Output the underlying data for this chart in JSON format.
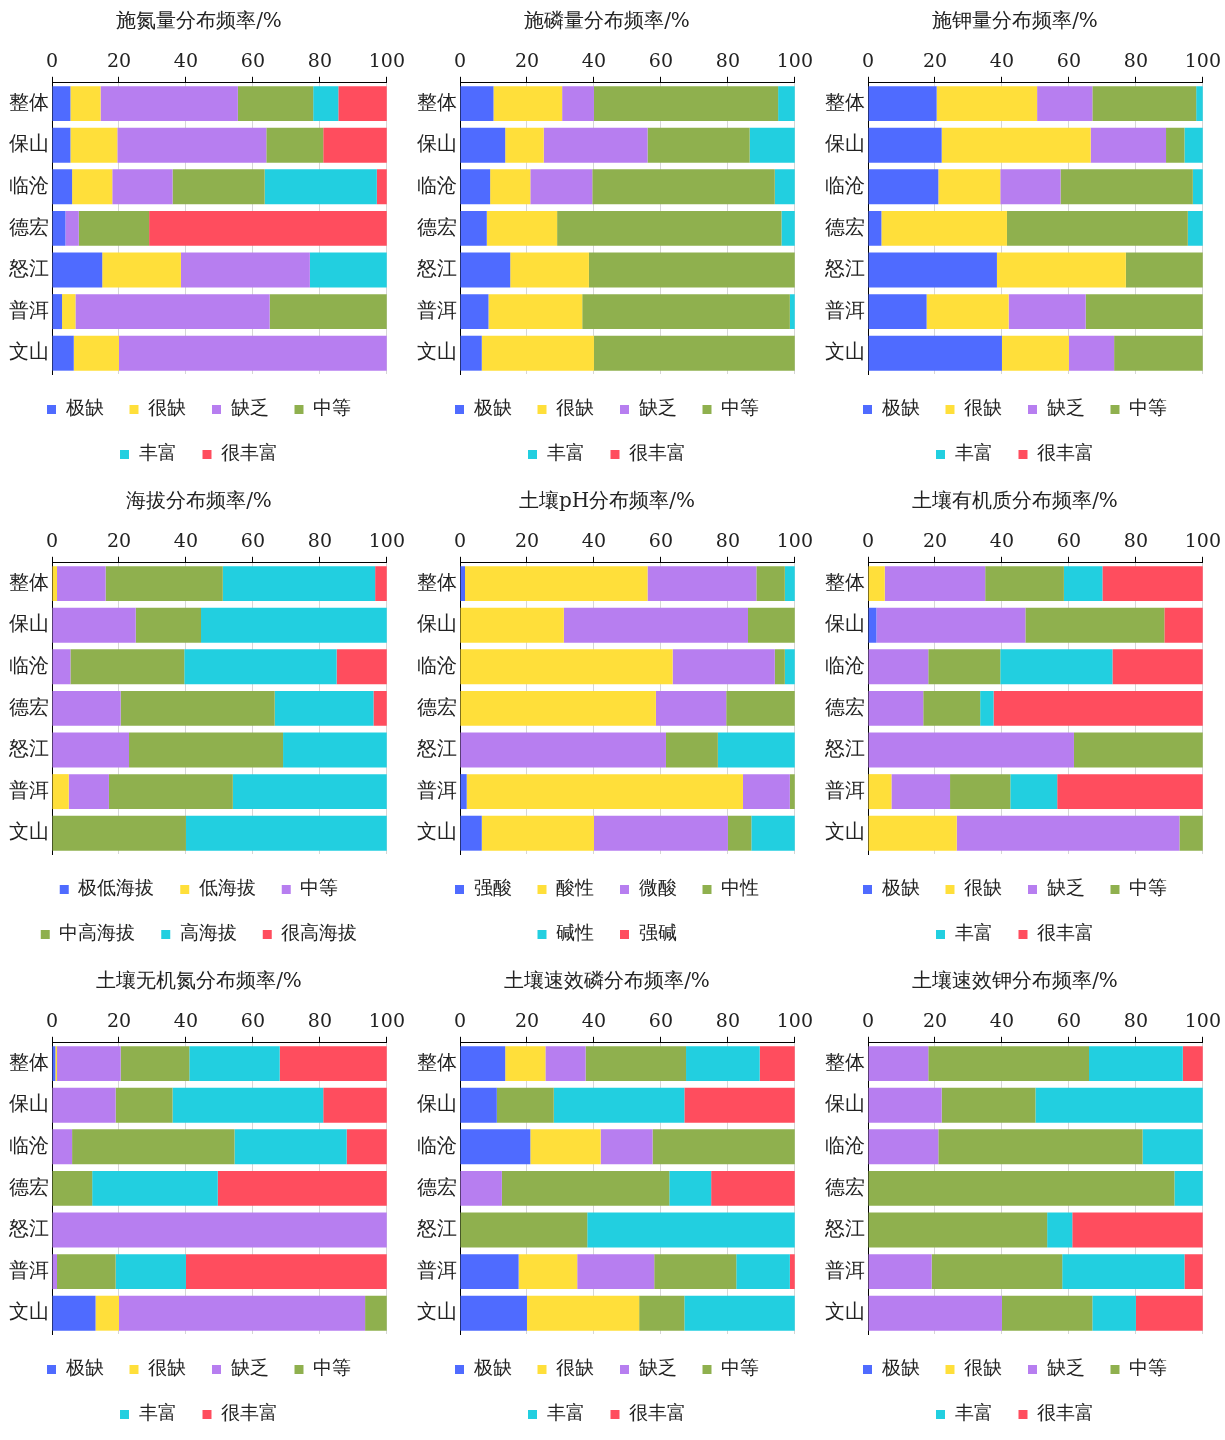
{
  "chart_data": [
    {
      "type": "bar",
      "orientation": "horizontal",
      "stacked": true,
      "title": "施氮量分布频率/%",
      "categories": [
        "整体",
        "保山",
        "临沧",
        "德宏",
        "怒江",
        "普洱",
        "文山"
      ],
      "xlim": [
        0,
        100
      ],
      "xticks": [
        0,
        20,
        40,
        60,
        80,
        100
      ],
      "grid": "x",
      "legend": "bottom",
      "series": [
        {
          "name": "极缺",
          "color": "#4f6bff",
          "values": [
            5.5,
            5.5,
            6,
            4,
            15,
            3,
            6.5
          ]
        },
        {
          "name": "很缺",
          "color": "#ffdf3a",
          "values": [
            9,
            14,
            12,
            0,
            23.5,
            4,
            13.5
          ]
        },
        {
          "name": "缺乏",
          "color": "#b77ef0",
          "values": [
            41,
            44.5,
            18,
            4,
            38.5,
            58,
            80
          ]
        },
        {
          "name": "中等",
          "color": "#8fb04e",
          "values": [
            22.5,
            17,
            27.5,
            21,
            0,
            35,
            0
          ]
        },
        {
          "name": "丰富",
          "color": "#22cfe0",
          "values": [
            7.5,
            0,
            33.5,
            0,
            23,
            0,
            0
          ]
        },
        {
          "name": "很丰富",
          "color": "#ff4d5e",
          "values": [
            14.5,
            19,
            3,
            71,
            0,
            0,
            0
          ]
        }
      ]
    },
    {
      "type": "bar",
      "orientation": "horizontal",
      "stacked": true,
      "title": "施磷量分布频率/%",
      "categories": [
        "整体",
        "保山",
        "临沧",
        "德宏",
        "怒江",
        "普洱",
        "文山"
      ],
      "xlim": [
        0,
        100
      ],
      "xticks": [
        0,
        20,
        40,
        60,
        80,
        100
      ],
      "grid": "x",
      "legend": "bottom",
      "series": [
        {
          "name": "极缺",
          "color": "#4f6bff",
          "values": [
            10,
            13.5,
            9,
            8,
            15,
            8.5,
            6.5
          ]
        },
        {
          "name": "很缺",
          "color": "#ffdf3a",
          "values": [
            20.5,
            11.5,
            12,
            21,
            23.5,
            28,
            33.5
          ]
        },
        {
          "name": "缺乏",
          "color": "#b77ef0",
          "values": [
            9.5,
            31,
            18.5,
            0,
            0,
            0,
            0
          ]
        },
        {
          "name": "中等",
          "color": "#8fb04e",
          "values": [
            55,
            30.5,
            54.5,
            67,
            61.5,
            62,
            60
          ]
        },
        {
          "name": "丰富",
          "color": "#22cfe0",
          "values": [
            5,
            13.5,
            6,
            4,
            0,
            1.5,
            0
          ]
        },
        {
          "name": "很丰富",
          "color": "#ff4d5e",
          "values": [
            0,
            0,
            0,
            0,
            0,
            0,
            0
          ]
        }
      ]
    },
    {
      "type": "bar",
      "orientation": "horizontal",
      "stacked": true,
      "title": "施钾量分布频率/%",
      "categories": [
        "整体",
        "保山",
        "临沧",
        "德宏",
        "怒江",
        "普洱",
        "文山"
      ],
      "xlim": [
        0,
        100
      ],
      "xticks": [
        0,
        20,
        40,
        60,
        80,
        100
      ],
      "grid": "x",
      "legend": "bottom",
      "series": [
        {
          "name": "极缺",
          "color": "#4f6bff",
          "values": [
            20.5,
            22,
            21,
            4,
            38.5,
            17.5,
            40
          ]
        },
        {
          "name": "很缺",
          "color": "#ffdf3a",
          "values": [
            30,
            44.5,
            18.5,
            37.5,
            38.5,
            24.5,
            20
          ]
        },
        {
          "name": "缺乏",
          "color": "#b77ef0",
          "values": [
            16.5,
            22.5,
            18,
            0,
            0,
            23,
            13.5
          ]
        },
        {
          "name": "中等",
          "color": "#8fb04e",
          "values": [
            31,
            5.5,
            39.5,
            54,
            23,
            35,
            26.5
          ]
        },
        {
          "name": "丰富",
          "color": "#22cfe0",
          "values": [
            2,
            5.5,
            3,
            4.5,
            0,
            0,
            0
          ]
        },
        {
          "name": "很丰富",
          "color": "#ff4d5e",
          "values": [
            0,
            0,
            0,
            0,
            0,
            0,
            0
          ]
        }
      ]
    },
    {
      "type": "bar",
      "orientation": "horizontal",
      "stacked": true,
      "title": "海拔分布频率/%",
      "categories": [
        "整体",
        "保山",
        "临沧",
        "德宏",
        "怒江",
        "普洱",
        "文山"
      ],
      "xlim": [
        0,
        100
      ],
      "xticks": [
        0,
        20,
        40,
        60,
        80,
        100
      ],
      "grid": "x",
      "legend": "bottom",
      "series": [
        {
          "name": "极低海拔",
          "color": "#4f6bff",
          "values": [
            0,
            0,
            0,
            0,
            0,
            0,
            0
          ]
        },
        {
          "name": "低海拔",
          "color": "#ffdf3a",
          "values": [
            1.5,
            0,
            0,
            0,
            0,
            5,
            0
          ]
        },
        {
          "name": "中等",
          "color": "#b77ef0",
          "values": [
            14.5,
            25,
            5.5,
            20.5,
            23,
            12,
            0
          ]
        },
        {
          "name": "中高海拔",
          "color": "#8fb04e",
          "values": [
            35,
            19.5,
            34,
            46,
            46,
            37,
            40
          ]
        },
        {
          "name": "高海拔",
          "color": "#22cfe0",
          "values": [
            45.5,
            55.5,
            45.5,
            29.5,
            31,
            46,
            60
          ]
        },
        {
          "name": "很高海拔",
          "color": "#ff4d5e",
          "values": [
            3.5,
            0,
            15,
            4,
            0,
            0,
            0
          ]
        }
      ]
    },
    {
      "type": "bar",
      "orientation": "horizontal",
      "stacked": true,
      "title": "土壤pH分布频率/%",
      "categories": [
        "整体",
        "保山",
        "临沧",
        "德宏",
        "怒江",
        "普洱",
        "文山"
      ],
      "xlim": [
        0,
        100
      ],
      "xticks": [
        0,
        20,
        40,
        60,
        80,
        100
      ],
      "grid": "x",
      "legend": "bottom",
      "series": [
        {
          "name": "强酸",
          "color": "#4f6bff",
          "values": [
            1.5,
            0,
            0,
            0,
            0,
            2,
            6.5
          ]
        },
        {
          "name": "酸性",
          "color": "#ffdf3a",
          "values": [
            54.5,
            31,
            63.5,
            58.5,
            0,
            82.5,
            33.5
          ]
        },
        {
          "name": "微酸",
          "color": "#b77ef0",
          "values": [
            32.5,
            55,
            30.5,
            21,
            61.5,
            14,
            40
          ]
        },
        {
          "name": "中性",
          "color": "#8fb04e",
          "values": [
            8.5,
            14,
            3,
            20.5,
            15.5,
            1.5,
            7
          ]
        },
        {
          "name": "碱性",
          "color": "#22cfe0",
          "values": [
            3,
            0,
            3,
            0,
            23,
            0,
            13
          ]
        },
        {
          "name": "强碱",
          "color": "#ff4d5e",
          "values": [
            0,
            0,
            0,
            0,
            0,
            0,
            0
          ]
        }
      ]
    },
    {
      "type": "bar",
      "orientation": "horizontal",
      "stacked": true,
      "title": "土壤有机质分布频率/%",
      "categories": [
        "整体",
        "保山",
        "临沧",
        "德宏",
        "怒江",
        "普洱",
        "文山"
      ],
      "xlim": [
        0,
        100
      ],
      "xticks": [
        0,
        20,
        40,
        60,
        80,
        100
      ],
      "grid": "x",
      "legend": "bottom",
      "series": [
        {
          "name": "极缺",
          "color": "#4f6bff",
          "values": [
            0,
            2.5,
            0,
            0,
            0,
            0,
            0
          ]
        },
        {
          "name": "很缺",
          "color": "#ffdf3a",
          "values": [
            5,
            0,
            0,
            0,
            0,
            7,
            26.5
          ]
        },
        {
          "name": "缺乏",
          "color": "#b77ef0",
          "values": [
            30,
            44.5,
            18,
            16.5,
            61.5,
            17.5,
            66.5
          ]
        },
        {
          "name": "中等",
          "color": "#8fb04e",
          "values": [
            23.5,
            41.5,
            21.5,
            17,
            38.5,
            18,
            7
          ]
        },
        {
          "name": "丰富",
          "color": "#22cfe0",
          "values": [
            11.5,
            0,
            33.5,
            4,
            0,
            14,
            0
          ]
        },
        {
          "name": "很丰富",
          "color": "#ff4d5e",
          "values": [
            30,
            11.5,
            27,
            62.5,
            0,
            43.5,
            0
          ]
        }
      ]
    },
    {
      "type": "bar",
      "orientation": "horizontal",
      "stacked": true,
      "title": "土壤无机氮分布频率/%",
      "categories": [
        "整体",
        "保山",
        "临沧",
        "德宏",
        "怒江",
        "普洱",
        "文山"
      ],
      "xlim": [
        0,
        100
      ],
      "xticks": [
        0,
        20,
        40,
        60,
        80,
        100
      ],
      "grid": "x",
      "legend": "bottom",
      "series": [
        {
          "name": "极缺",
          "color": "#4f6bff",
          "values": [
            1,
            0,
            0,
            0,
            0,
            0,
            13
          ]
        },
        {
          "name": "很缺",
          "color": "#ffdf3a",
          "values": [
            0.5,
            0,
            0,
            0,
            0,
            0,
            7
          ]
        },
        {
          "name": "缺乏",
          "color": "#b77ef0",
          "values": [
            19,
            19,
            6,
            0,
            100,
            1.5,
            73.5
          ]
        },
        {
          "name": "中等",
          "color": "#8fb04e",
          "values": [
            20.5,
            17,
            48.5,
            12,
            0,
            17.5,
            6.5
          ]
        },
        {
          "name": "丰富",
          "color": "#22cfe0",
          "values": [
            27,
            45,
            33.5,
            37.5,
            0,
            21,
            0
          ]
        },
        {
          "name": "很丰富",
          "color": "#ff4d5e",
          "values": [
            32,
            19,
            12,
            50.5,
            0,
            60,
            0
          ]
        }
      ]
    },
    {
      "type": "bar",
      "orientation": "horizontal",
      "stacked": true,
      "title": "土壤速效磷分布频率/%",
      "categories": [
        "整体",
        "保山",
        "临沧",
        "德宏",
        "怒江",
        "普洱",
        "文山"
      ],
      "xlim": [
        0,
        100
      ],
      "xticks": [
        0,
        20,
        40,
        60,
        80,
        100
      ],
      "grid": "x",
      "legend": "bottom",
      "series": [
        {
          "name": "极缺",
          "color": "#4f6bff",
          "values": [
            13.5,
            11,
            21,
            0,
            0,
            17.5,
            20
          ]
        },
        {
          "name": "很缺",
          "color": "#ffdf3a",
          "values": [
            12,
            0,
            21,
            0,
            0,
            17.5,
            33.5
          ]
        },
        {
          "name": "缺乏",
          "color": "#b77ef0",
          "values": [
            12,
            0,
            15.5,
            12.5,
            0,
            23,
            0
          ]
        },
        {
          "name": "中等",
          "color": "#8fb04e",
          "values": [
            30,
            17,
            42.5,
            50,
            38,
            24.5,
            13.5
          ]
        },
        {
          "name": "丰富",
          "color": "#22cfe0",
          "values": [
            22,
            39,
            0,
            12.5,
            62,
            16,
            33
          ]
        },
        {
          "name": "很丰富",
          "color": "#ff4d5e",
          "values": [
            10.5,
            33,
            0,
            25,
            0,
            1.5,
            0
          ]
        }
      ]
    },
    {
      "type": "bar",
      "orientation": "horizontal",
      "stacked": true,
      "title": "土壤速效钾分布频率/%",
      "categories": [
        "整体",
        "保山",
        "临沧",
        "德宏",
        "怒江",
        "普洱",
        "文山"
      ],
      "xlim": [
        0,
        100
      ],
      "xticks": [
        0,
        20,
        40,
        60,
        80,
        100
      ],
      "grid": "x",
      "legend": "bottom",
      "series": [
        {
          "name": "极缺",
          "color": "#4f6bff",
          "values": [
            0,
            0,
            0,
            0,
            0,
            0,
            0
          ]
        },
        {
          "name": "很缺",
          "color": "#ffdf3a",
          "values": [
            0,
            0,
            0,
            0,
            0,
            0,
            0
          ]
        },
        {
          "name": "缺乏",
          "color": "#b77ef0",
          "values": [
            18,
            22,
            21,
            0,
            0,
            19,
            40
          ]
        },
        {
          "name": "中等",
          "color": "#8fb04e",
          "values": [
            48,
            28,
            61,
            91.5,
            53.5,
            39,
            27
          ]
        },
        {
          "name": "丰富",
          "color": "#22cfe0",
          "values": [
            28,
            50,
            18,
            8.5,
            7.5,
            36.5,
            13
          ]
        },
        {
          "name": "很丰富",
          "color": "#ff4d5e",
          "values": [
            6,
            0,
            0,
            0,
            39,
            5.5,
            20
          ]
        }
      ]
    }
  ]
}
